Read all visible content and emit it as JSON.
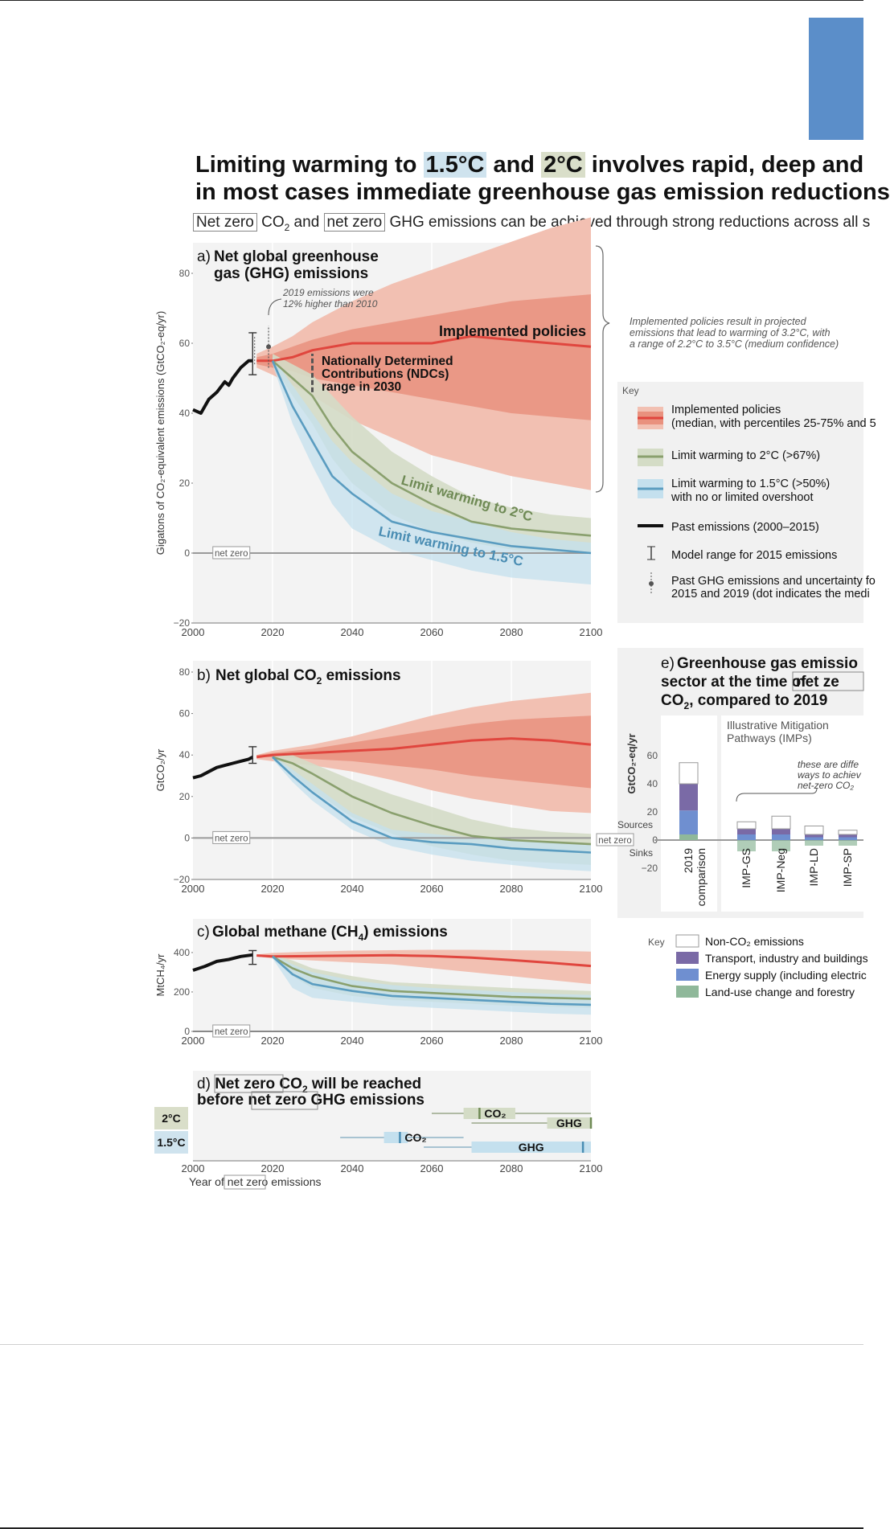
{
  "header": {
    "title_line1": [
      "Limiting warming to ",
      "1.5°C",
      " and ",
      "2°C",
      " involves rapid, deep and"
    ],
    "title_line2": "in most cases immediate greenhouse gas emission reductions",
    "subtitle_parts": [
      "Net zero",
      " CO",
      "2",
      " and ",
      "net zero",
      " GHG emissions can be achieved through strong reductions across all s"
    ]
  },
  "colors": {
    "implemented": "#e0463e",
    "implemented_band_outer": "#f2c0b2",
    "implemented_band_inner": "#e9917e",
    "two_c": "#8aa06e",
    "two_c_band": "#d4dcc6",
    "one_five_c": "#5a9cc0",
    "one_five_c_band": "#c4e0ee",
    "past": "#111111",
    "panel_bg": "#f3f3f3",
    "transport": "#7a6aa6",
    "energy": "#6f8fd0",
    "landuse": "#8fb89a"
  },
  "chart_data": [
    {
      "id": "a",
      "type": "area",
      "title": [
        "a) ",
        "Net global greenhouse",
        "gas (GHG) emissions"
      ],
      "ylabel": "Gigatons of CO₂-equivalent emissions (GtCO₂-eq/yr)",
      "xlim": [
        2000,
        2100
      ],
      "ylim": [
        -20,
        80
      ],
      "xticks": [
        "2000",
        "2020",
        "2040",
        "2060",
        "2080",
        "2100"
      ],
      "yticks": [
        "80",
        "60",
        "40",
        "20",
        "0",
        "−20"
      ],
      "net_zero_label": "net zero",
      "annotations": {
        "emissions_2019": [
          "2019 emissions were",
          "12% higher than 2010"
        ],
        "ndc": [
          "Nationally Determined",
          "Contributions (NDCs)",
          "range in 2030"
        ],
        "implemented_label": "Implemented policies",
        "limit2_label": "Limit warming to 2°C",
        "limit15_label": "Limit warming to 1.5°C",
        "side_note": [
          "Implemented policies result in projected",
          "emissions that lead to warming of 3.2°C, with",
          "a range of 2.2°C to 3.5°C (medium confidence)"
        ]
      },
      "past": {
        "x": [
          2000,
          2002,
          2004,
          2006,
          2008,
          2009,
          2010,
          2012,
          2014,
          2015
        ],
        "y": [
          41,
          40,
          44,
          46,
          49,
          48,
          50,
          53,
          55,
          55
        ]
      },
      "model_range_2015": [
        51,
        63
      ],
      "past_2019": {
        "low": 53,
        "mid": 59,
        "high": 65
      },
      "ndc_2030": [
        46,
        57
      ],
      "series": [
        {
          "key": "implemented",
          "x": [
            2016,
            2020,
            2025,
            2030,
            2040,
            2050,
            2060,
            2070,
            2080,
            2090,
            2100
          ],
          "median": [
            55,
            55,
            56,
            58,
            60,
            60,
            60,
            62,
            61,
            60,
            59
          ],
          "p25": [
            54,
            53,
            52,
            50,
            48,
            46,
            44,
            42,
            40,
            39,
            38
          ],
          "p75": [
            56,
            57,
            59,
            61,
            64,
            66,
            68,
            70,
            72,
            73,
            74
          ],
          "p5": [
            53,
            51,
            48,
            45,
            38,
            33,
            28,
            25,
            22,
            20,
            18
          ],
          "p95": [
            57,
            59,
            62,
            66,
            72,
            77,
            81,
            85,
            89,
            93,
            96
          ]
        },
        {
          "key": "two_c",
          "x": [
            2020,
            2025,
            2030,
            2035,
            2040,
            2050,
            2060,
            2070,
            2080,
            2090,
            2100
          ],
          "median": [
            55,
            50,
            45,
            36,
            29,
            20,
            14,
            9,
            7,
            6,
            5
          ],
          "low": [
            54,
            45,
            37,
            27,
            20,
            11,
            6,
            3,
            1,
            0,
            0
          ],
          "high": [
            57,
            54,
            51,
            45,
            39,
            29,
            22,
            16,
            13,
            11,
            10
          ]
        },
        {
          "key": "one_five_c",
          "x": [
            2020,
            2025,
            2030,
            2035,
            2040,
            2050,
            2060,
            2070,
            2080,
            2090,
            2100
          ],
          "median": [
            55,
            42,
            32,
            22,
            17,
            9,
            6,
            4,
            2,
            1,
            0
          ],
          "low": [
            54,
            37,
            25,
            14,
            7,
            1,
            -2,
            -5,
            -7,
            -8,
            -9
          ],
          "high": [
            56,
            48,
            40,
            32,
            26,
            17,
            12,
            9,
            6,
            4,
            3
          ]
        }
      ]
    },
    {
      "id": "b",
      "type": "area",
      "title": [
        "b) ",
        "Net global CO",
        "2",
        " emissions"
      ],
      "ylabel": "GtCO₂/yr",
      "xlim": [
        2000,
        2100
      ],
      "ylim": [
        -20,
        80
      ],
      "xticks": [
        "2000",
        "2020",
        "2040",
        "2060",
        "2080",
        "2100"
      ],
      "yticks": [
        "80",
        "60",
        "40",
        "20",
        "0",
        "−20"
      ],
      "net_zero_label": "net zero",
      "past": {
        "x": [
          2000,
          2002,
          2004,
          2006,
          2008,
          2010,
          2012,
          2014,
          2015
        ],
        "y": [
          29,
          30,
          32,
          34,
          35,
          36,
          37,
          38,
          39
        ]
      },
      "model_range_2015": [
        36,
        44
      ],
      "series": [
        {
          "key": "implemented",
          "x": [
            2016,
            2020,
            2030,
            2040,
            2050,
            2060,
            2070,
            2080,
            2090,
            2100
          ],
          "median": [
            39,
            40,
            41,
            42,
            43,
            45,
            47,
            48,
            47,
            45
          ],
          "p25": [
            39,
            39,
            38,
            37,
            35,
            33,
            30,
            28,
            26,
            24
          ],
          "p75": [
            40,
            41,
            43,
            46,
            49,
            52,
            55,
            57,
            58,
            59
          ],
          "p5": [
            38,
            37,
            35,
            32,
            28,
            23,
            19,
            16,
            13,
            12
          ],
          "p95": [
            40,
            42,
            45,
            49,
            54,
            59,
            63,
            66,
            68,
            70
          ]
        },
        {
          "key": "two_c",
          "x": [
            2020,
            2025,
            2030,
            2040,
            2050,
            2060,
            2070,
            2080,
            2090,
            2100
          ],
          "median": [
            39,
            36,
            31,
            20,
            12,
            6,
            1,
            -1,
            -2,
            -3
          ],
          "low": [
            38,
            31,
            23,
            10,
            2,
            -4,
            -8,
            -11,
            -12,
            -13
          ],
          "high": [
            40,
            40,
            36,
            28,
            21,
            15,
            9,
            5,
            3,
            2
          ]
        },
        {
          "key": "one_five_c",
          "x": [
            2020,
            2025,
            2030,
            2040,
            2050,
            2060,
            2070,
            2080,
            2090,
            2100
          ],
          "median": [
            39,
            30,
            22,
            8,
            0,
            -2,
            -3,
            -5,
            -6,
            -7
          ],
          "low": [
            38,
            27,
            18,
            4,
            -4,
            -8,
            -11,
            -13,
            -15,
            -16
          ],
          "high": [
            40,
            33,
            26,
            12,
            4,
            2,
            0,
            -1,
            -2,
            -3
          ]
        }
      ]
    },
    {
      "id": "c",
      "type": "area",
      "title": [
        "c) ",
        "Global methane (CH",
        "4",
        ") emissions"
      ],
      "ylabel": "MtCH₄/yr",
      "xlim": [
        2000,
        2100
      ],
      "ylim": [
        0,
        420
      ],
      "xticks": [
        "2000",
        "2020",
        "2040",
        "2060",
        "2080",
        "2100"
      ],
      "yticks": [
        "400",
        "200",
        "0"
      ],
      "net_zero_label": "net zero",
      "past": {
        "x": [
          2000,
          2003,
          2006,
          2009,
          2012,
          2015
        ],
        "y": [
          310,
          330,
          355,
          365,
          380,
          388
        ]
      },
      "model_range_2015": [
        340,
        410
      ],
      "series": [
        {
          "key": "implemented",
          "x": [
            2016,
            2020,
            2030,
            2040,
            2050,
            2060,
            2070,
            2080,
            2090,
            2100
          ],
          "median": [
            385,
            380,
            382,
            384,
            386,
            382,
            374,
            362,
            348,
            332
          ],
          "p5": [
            380,
            370,
            360,
            350,
            340,
            320,
            300,
            280,
            260,
            240
          ],
          "p95": [
            390,
            398,
            405,
            410,
            412,
            414,
            414,
            412,
            410,
            405
          ]
        },
        {
          "key": "two_c",
          "x": [
            2020,
            2025,
            2030,
            2040,
            2050,
            2060,
            2070,
            2080,
            2090,
            2100
          ],
          "median": [
            380,
            320,
            280,
            230,
            205,
            195,
            185,
            175,
            170,
            165
          ],
          "low": [
            370,
            280,
            220,
            180,
            160,
            150,
            140,
            130,
            125,
            120
          ],
          "high": [
            390,
            360,
            320,
            280,
            250,
            240,
            230,
            220,
            212,
            205
          ]
        },
        {
          "key": "one_five_c",
          "x": [
            2020,
            2025,
            2030,
            2040,
            2050,
            2060,
            2070,
            2080,
            2090,
            2100
          ],
          "median": [
            380,
            290,
            240,
            205,
            180,
            170,
            160,
            150,
            140,
            135
          ],
          "low": [
            370,
            220,
            170,
            150,
            130,
            120,
            110,
            100,
            90,
            85
          ],
          "high": [
            390,
            340,
            300,
            260,
            235,
            220,
            210,
            200,
            190,
            185
          ]
        }
      ]
    },
    {
      "id": "d",
      "type": "bar",
      "title_line1": [
        "d) ",
        "Net zero",
        " CO",
        "2",
        " will be reached"
      ],
      "title_line2": [
        "before ",
        "net zero",
        " GHG emissions"
      ],
      "xlabel": [
        "Year of ",
        "net zero",
        " emissions"
      ],
      "xlim": [
        2000,
        2100
      ],
      "xticks": [
        "2000",
        "2020",
        "2040",
        "2060",
        "2080",
        "2100"
      ],
      "rows": [
        {
          "label": "2°C",
          "co2": {
            "range": [
              2060,
              2100
            ],
            "box": [
              2068,
              2081
            ],
            "median": 2072,
            "label": "CO₂"
          },
          "ghg": {
            "range": [
              2070,
              2100
            ],
            "box": [
              2089,
              2100
            ],
            "median": 2100,
            "label": "GHG"
          }
        },
        {
          "label": "1.5°C",
          "co2": {
            "range": [
              2037,
              2068
            ],
            "box": [
              2048,
              2054
            ],
            "median": 2052,
            "label": "CO₂"
          },
          "ghg": {
            "range": [
              2058,
              2100
            ],
            "box": [
              2070,
              2100
            ],
            "median": 2098,
            "label": "GHG"
          }
        }
      ]
    },
    {
      "id": "e",
      "type": "bar",
      "title_parts": [
        "e) ",
        "Greenhouse gas emissio",
        "sector at the time of ",
        "net ze",
        "CO",
        "2",
        ", compared to 2019"
      ],
      "ylabel": "GtCO₂-eq/yr",
      "ylim": [
        -20,
        60
      ],
      "yticks": [
        "60",
        "40",
        "20",
        "0",
        "−20"
      ],
      "sources_label": "Sources",
      "sinks_label": "Sinks",
      "net_zero_label": "net zero",
      "imp_label": [
        "Illustrative Mitigation",
        "Pathways (IMPs)"
      ],
      "imp_note": [
        "these are diffe",
        "ways to achiev",
        "net-zero CO₂"
      ],
      "bars": [
        {
          "label": [
            "2019",
            "comparison"
          ],
          "non_co2": 15,
          "transport": 19,
          "energy": 17,
          "landuse": 4,
          "sink": 0
        },
        {
          "label": [
            "IMP-GS"
          ],
          "non_co2": 5,
          "transport": 4,
          "energy": 4,
          "landuse": 0,
          "sink": -8
        },
        {
          "label": [
            "IMP-Neg"
          ],
          "non_co2": 9,
          "transport": 4,
          "energy": 4,
          "landuse": 0,
          "sink": -8
        },
        {
          "label": [
            "IMP-LD"
          ],
          "non_co2": 6,
          "transport": 2,
          "energy": 2,
          "landuse": 0,
          "sink": -4
        },
        {
          "label": [
            "IMP-SP"
          ],
          "non_co2": 3,
          "transport": 2,
          "energy": 2,
          "landuse": 0,
          "sink": -4
        }
      ]
    }
  ],
  "key_main": {
    "heading": "Key",
    "items": [
      [
        "Implemented policies",
        "(median, with percentiles 25-75% and 5"
      ],
      [
        "Limit warming to 2°C (>67%)"
      ],
      [
        "Limit warming to 1.5°C (>50%)",
        "with no or limited overshoot"
      ],
      [
        "Past emissions (2000–2015)"
      ],
      [
        "Model range for 2015 emissions"
      ],
      [
        "Past GHG emissions and uncertainty fo",
        "2015 and 2019 (dot indicates the medi"
      ]
    ]
  },
  "key_sector": {
    "heading": "Key",
    "items": [
      "Non-CO₂ emissions",
      "Transport, industry and buildings",
      "Energy supply (including electric",
      "Land-use change and forestry"
    ]
  }
}
